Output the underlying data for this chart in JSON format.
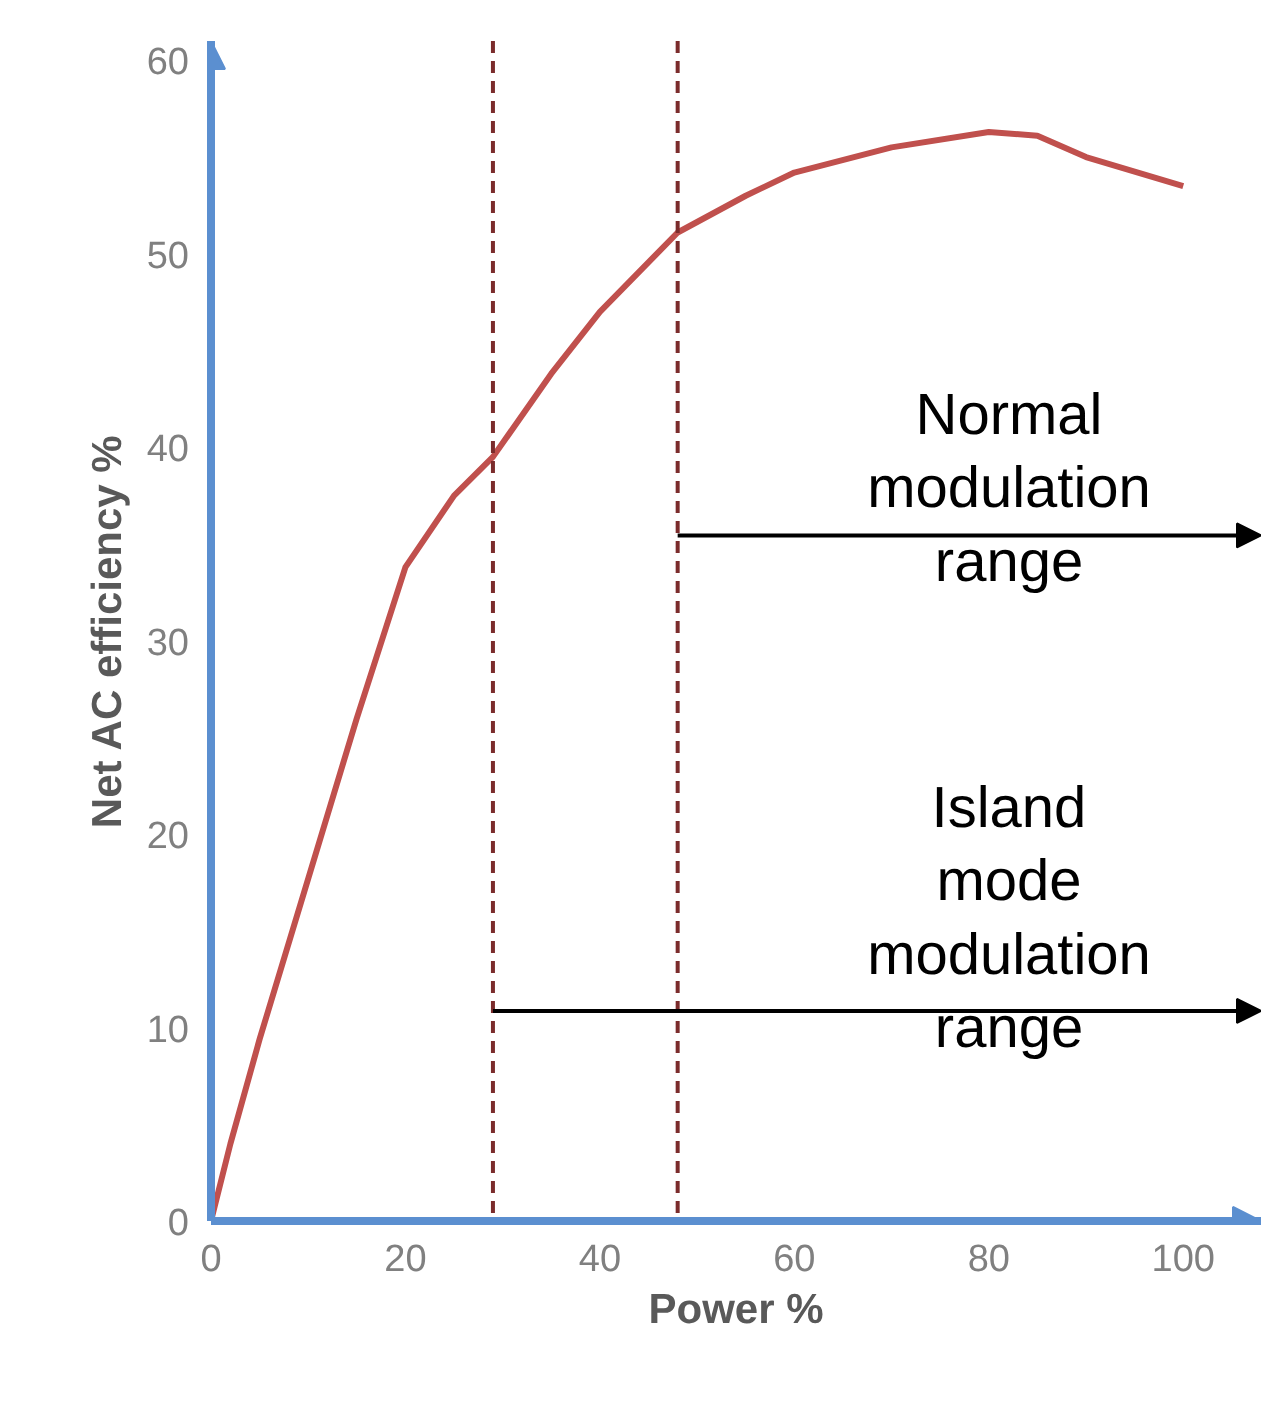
{
  "chart_data": {
    "type": "line",
    "xlabel": "Power %",
    "ylabel": "Net AC efficiency %",
    "x": [
      0,
      2,
      5,
      10,
      15,
      20,
      25,
      29,
      35,
      40,
      48,
      55,
      60,
      70,
      80,
      85,
      90,
      100
    ],
    "series": [
      {
        "color": "#c0504d",
        "values": [
          0,
          4,
          9.4,
          17.7,
          26,
          33.8,
          37.5,
          39.5,
          43.8,
          47,
          51.1,
          53,
          54.2,
          55.5,
          56.3,
          56.1,
          55,
          53.5
        ]
      }
    ],
    "xlim": [
      0,
      108
    ],
    "ylim": [
      0,
      61
    ],
    "xticks": [
      0,
      20,
      40,
      60,
      80,
      100
    ],
    "yticks": [
      0,
      10,
      20,
      30,
      40,
      50,
      60
    ],
    "ref_lines": [
      {
        "axis": "x",
        "value": 48,
        "color": "#7b2c2c",
        "line_style": "dashed"
      },
      {
        "axis": "x",
        "value": 29,
        "color": "#7b2c2c",
        "line_style": "dashed"
      }
    ],
    "annotations": [
      "Normal\nmodulation\nrange",
      "Island\nmode\nmodulation\nrange"
    ],
    "grid": false
  }
}
